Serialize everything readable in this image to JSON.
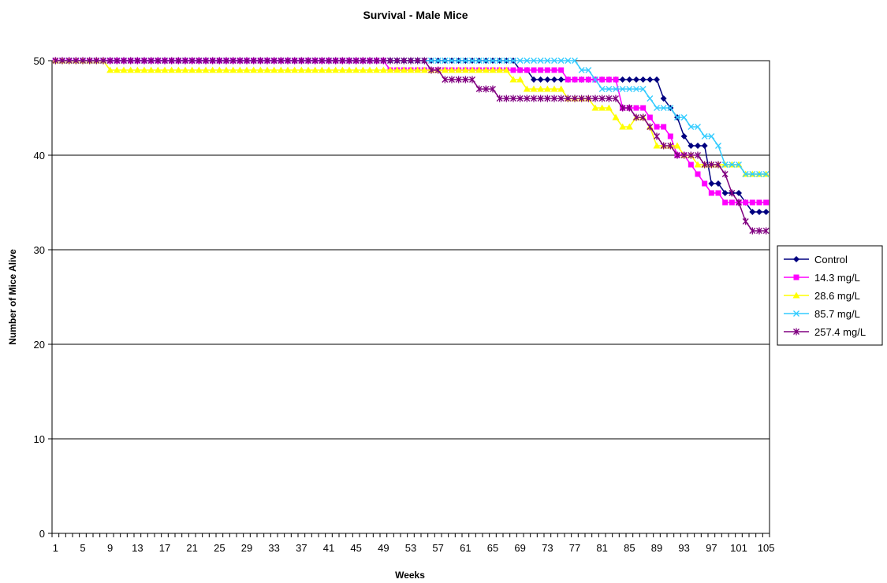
{
  "chart_data": {
    "type": "line",
    "title": "Survival - Male Mice",
    "xlabel": "Weeks",
    "ylabel": "Number of Mice Alive",
    "xlim": [
      1,
      105
    ],
    "ylim": [
      0,
      50
    ],
    "yticks": [
      0,
      10,
      20,
      30,
      40,
      50
    ],
    "xticks": [
      1,
      5,
      9,
      13,
      17,
      21,
      25,
      29,
      33,
      37,
      41,
      45,
      49,
      53,
      57,
      61,
      65,
      69,
      73,
      77,
      81,
      85,
      89,
      93,
      97,
      101,
      105
    ],
    "grid": "horizontal",
    "legend_position": "right",
    "series": [
      {
        "name": "Control",
        "color": "#000080",
        "marker": "diamond",
        "steps": [
          [
            1,
            50
          ],
          [
            69,
            49
          ],
          [
            71,
            48
          ],
          [
            77,
            48
          ],
          [
            83,
            48
          ],
          [
            90,
            46
          ],
          [
            91,
            45
          ],
          [
            92,
            44
          ],
          [
            93,
            42
          ],
          [
            94,
            41
          ],
          [
            97,
            37
          ],
          [
            99,
            36
          ],
          [
            102,
            35
          ],
          [
            103,
            34
          ],
          [
            105,
            34
          ]
        ]
      },
      {
        "name": "14.3 mg/L",
        "color": "#ff00ff",
        "marker": "square",
        "steps": [
          [
            1,
            50
          ],
          [
            50,
            49
          ],
          [
            76,
            48
          ],
          [
            81,
            48
          ],
          [
            84,
            45
          ],
          [
            88,
            44
          ],
          [
            89,
            43
          ],
          [
            91,
            42
          ],
          [
            92,
            40
          ],
          [
            94,
            39
          ],
          [
            95,
            38
          ],
          [
            96,
            37
          ],
          [
            97,
            36
          ],
          [
            99,
            35
          ],
          [
            105,
            35
          ]
        ]
      },
      {
        "name": "28.6 mg/L",
        "color": "#ffff00",
        "marker": "triangle",
        "steps": [
          [
            1,
            50
          ],
          [
            9,
            49
          ],
          [
            68,
            48
          ],
          [
            70,
            47
          ],
          [
            76,
            46
          ],
          [
            80,
            45
          ],
          [
            83,
            44
          ],
          [
            84,
            43
          ],
          [
            86,
            44
          ],
          [
            88,
            43
          ],
          [
            89,
            41
          ],
          [
            93,
            40
          ],
          [
            95,
            39
          ],
          [
            101,
            39
          ],
          [
            102,
            38
          ],
          [
            105,
            38
          ]
        ]
      },
      {
        "name": "85.7 mg/L",
        "color": "#33ccff",
        "marker": "x",
        "steps": [
          [
            1,
            50
          ],
          [
            77,
            50
          ],
          [
            78,
            49
          ],
          [
            80,
            48
          ],
          [
            81,
            47
          ],
          [
            87,
            47
          ],
          [
            88,
            46
          ],
          [
            89,
            45
          ],
          [
            91,
            45
          ],
          [
            92,
            44
          ],
          [
            94,
            43
          ],
          [
            96,
            42
          ],
          [
            98,
            41
          ],
          [
            99,
            39
          ],
          [
            102,
            38
          ],
          [
            105,
            38
          ]
        ]
      },
      {
        "name": "257.4 mg/L",
        "color": "#800080",
        "marker": "star",
        "steps": [
          [
            1,
            50
          ],
          [
            56,
            49
          ],
          [
            58,
            48
          ],
          [
            63,
            47
          ],
          [
            66,
            46
          ],
          [
            76,
            46
          ],
          [
            83,
            46
          ],
          [
            84,
            45
          ],
          [
            86,
            44
          ],
          [
            88,
            43
          ],
          [
            89,
            42
          ],
          [
            90,
            41
          ],
          [
            92,
            40
          ],
          [
            96,
            39
          ],
          [
            99,
            38
          ],
          [
            100,
            36
          ],
          [
            101,
            35
          ],
          [
            102,
            33
          ],
          [
            103,
            32
          ],
          [
            105,
            32
          ]
        ]
      }
    ]
  }
}
